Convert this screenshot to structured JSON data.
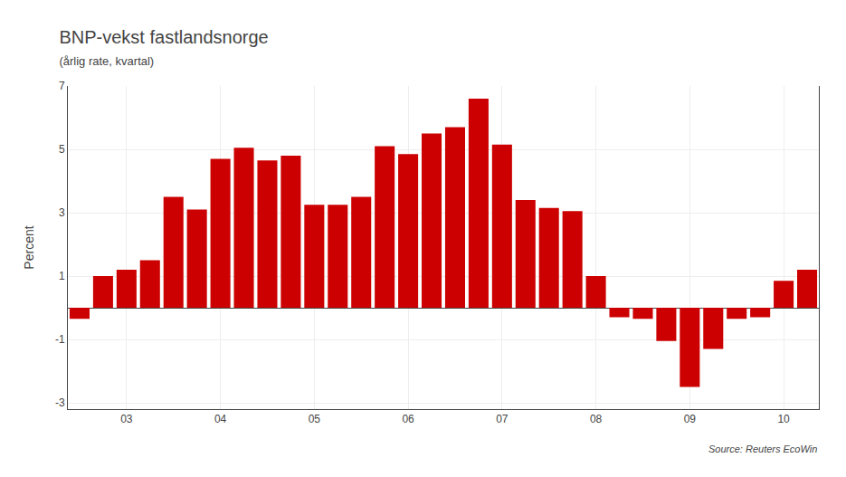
{
  "chart_data": {
    "type": "bar",
    "title": "BNP-vekst fastlandsnorge",
    "subtitle": "(årlig rate, kvartal)",
    "ylabel": "Percent",
    "annotations": [
      "Source: Reuters EcoWin"
    ],
    "categories": [
      null,
      null,
      "03",
      null,
      null,
      null,
      "04",
      null,
      null,
      null,
      "05",
      null,
      null,
      null,
      "06",
      null,
      null,
      null,
      "07",
      null,
      null,
      null,
      "08",
      null,
      null,
      null,
      "09",
      null,
      null,
      null,
      "10",
      null
    ],
    "values": [
      -0.35,
      1.0,
      1.2,
      1.5,
      3.5,
      3.1,
      4.7,
      5.05,
      4.65,
      4.8,
      3.25,
      3.25,
      3.5,
      5.1,
      4.85,
      5.5,
      5.7,
      6.6,
      5.15,
      3.4,
      3.15,
      3.05,
      1.0,
      -0.3,
      -0.35,
      -1.05,
      -2.5,
      -1.3,
      -0.35,
      -0.3,
      0.85,
      1.2
    ],
    "color": "#CC0000",
    "ylim": [
      -3.2,
      7.0
    ],
    "yticks": [
      -3,
      -1,
      1,
      3,
      5,
      7
    ],
    "grid": true
  }
}
